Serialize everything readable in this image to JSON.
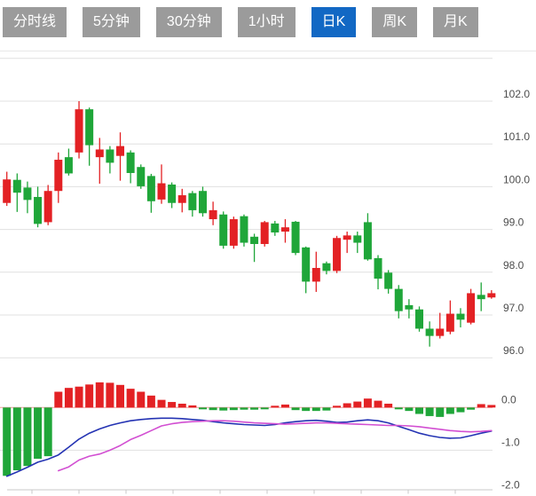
{
  "tabs": {
    "items": [
      {
        "label": "分时线",
        "active": false
      },
      {
        "label": "5分钟",
        "active": false
      },
      {
        "label": "30分钟",
        "active": false
      },
      {
        "label": "1小时",
        "active": false
      },
      {
        "label": "日K",
        "active": true
      },
      {
        "label": "周K",
        "active": false
      },
      {
        "label": "月K",
        "active": false
      }
    ],
    "active_color": "#1268c4",
    "inactive_color": "#9b9b9b"
  },
  "chart_data": {
    "type": "candlestick+macd",
    "grid": true,
    "legend": "none",
    "price_axis": {
      "tick_labels": [
        "102.0",
        "101.0",
        "100.0",
        "99.0",
        "98.0",
        "97.0",
        "96.0"
      ],
      "gridline_values": [
        103,
        102,
        101,
        100,
        99,
        98,
        97,
        96
      ],
      "range": [
        95.6,
        103.2
      ]
    },
    "candles_ohlc": [
      [
        99.62,
        100.35,
        99.55,
        100.17
      ],
      [
        100.16,
        100.31,
        99.41,
        99.86
      ],
      [
        99.98,
        100.12,
        99.38,
        99.69
      ],
      [
        99.76,
        100.0,
        99.05,
        99.13
      ],
      [
        99.17,
        100.04,
        99.1,
        99.9
      ],
      [
        99.9,
        100.8,
        99.62,
        100.63
      ],
      [
        100.69,
        100.89,
        100.26,
        100.31
      ],
      [
        100.8,
        102.0,
        100.66,
        101.81
      ],
      [
        101.81,
        101.85,
        100.49,
        100.97
      ],
      [
        100.69,
        101.14,
        100.07,
        100.87
      ],
      [
        100.87,
        100.95,
        100.31,
        100.56
      ],
      [
        100.72,
        101.27,
        100.14,
        100.95
      ],
      [
        100.8,
        100.85,
        100.08,
        100.32
      ],
      [
        100.46,
        100.52,
        99.95,
        100.01
      ],
      [
        100.25,
        100.3,
        99.39,
        99.66
      ],
      [
        99.7,
        100.52,
        99.6,
        100.08
      ],
      [
        100.05,
        100.1,
        99.5,
        99.62
      ],
      [
        99.62,
        99.95,
        99.4,
        99.8
      ],
      [
        99.85,
        99.9,
        99.3,
        99.45
      ],
      [
        99.9,
        100.0,
        99.3,
        99.38
      ],
      [
        99.24,
        99.65,
        99.1,
        99.45
      ],
      [
        99.35,
        99.42,
        98.55,
        98.62
      ],
      [
        98.62,
        99.3,
        98.55,
        99.24
      ],
      [
        99.31,
        99.35,
        98.6,
        98.69
      ],
      [
        98.83,
        98.9,
        98.24,
        98.66
      ],
      [
        98.66,
        99.2,
        98.6,
        99.17
      ],
      [
        99.14,
        99.2,
        98.85,
        98.93
      ],
      [
        98.95,
        99.24,
        98.69,
        99.05
      ],
      [
        99.18,
        99.2,
        98.4,
        98.45
      ],
      [
        98.58,
        98.6,
        97.51,
        97.78
      ],
      [
        97.78,
        98.48,
        97.54,
        98.1
      ],
      [
        98.21,
        98.25,
        97.95,
        98.03
      ],
      [
        98.03,
        98.85,
        97.98,
        98.8
      ],
      [
        98.76,
        98.95,
        98.45,
        98.86
      ],
      [
        98.86,
        98.95,
        98.45,
        98.69
      ],
      [
        99.17,
        99.38,
        98.27,
        98.3
      ],
      [
        98.33,
        98.4,
        97.6,
        97.85
      ],
      [
        97.99,
        98.05,
        97.5,
        97.61
      ],
      [
        97.61,
        97.7,
        96.92,
        97.09
      ],
      [
        97.23,
        97.37,
        96.92,
        97.13
      ],
      [
        97.13,
        97.2,
        96.61,
        96.68
      ],
      [
        96.68,
        96.85,
        96.26,
        96.51
      ],
      [
        96.51,
        97.05,
        96.45,
        96.68
      ],
      [
        96.61,
        97.34,
        96.55,
        97.03
      ],
      [
        97.03,
        97.16,
        96.71,
        96.89
      ],
      [
        96.82,
        97.61,
        96.78,
        97.51
      ],
      [
        97.47,
        97.76,
        97.09,
        97.37
      ],
      [
        97.41,
        97.58,
        97.38,
        97.51
      ]
    ],
    "macd": {
      "axis_tick_labels": [
        "0.0",
        "-1.0",
        "-2.0"
      ],
      "axis_tick_values": [
        0,
        -1,
        -2
      ],
      "range": [
        -2.0,
        0.65
      ],
      "histogram": [
        -1.6,
        -1.47,
        -1.37,
        -1.2,
        -1.14,
        0.37,
        0.46,
        0.49,
        0.54,
        0.59,
        0.58,
        0.53,
        0.44,
        0.37,
        0.28,
        0.18,
        0.13,
        0.09,
        0.05,
        -0.04,
        -0.06,
        -0.07,
        -0.06,
        -0.05,
        -0.05,
        -0.04,
        0.03,
        0.07,
        -0.06,
        -0.08,
        -0.08,
        -0.07,
        0.04,
        0.1,
        0.14,
        0.21,
        0.16,
        0.09,
        -0.04,
        -0.08,
        -0.15,
        -0.2,
        -0.22,
        -0.15,
        -0.11,
        -0.05,
        0.08,
        0.06
      ],
      "dif": [
        -1.61,
        -1.51,
        -1.4,
        -1.28,
        -1.21,
        -1.11,
        -0.93,
        -0.74,
        -0.6,
        -0.5,
        -0.42,
        -0.36,
        -0.31,
        -0.28,
        -0.26,
        -0.25,
        -0.25,
        -0.26,
        -0.28,
        -0.3,
        -0.33,
        -0.36,
        -0.38,
        -0.4,
        -0.41,
        -0.42,
        -0.4,
        -0.36,
        -0.33,
        -0.31,
        -0.3,
        -0.32,
        -0.35,
        -0.34,
        -0.31,
        -0.29,
        -0.31,
        -0.36,
        -0.44,
        -0.52,
        -0.6,
        -0.66,
        -0.7,
        -0.72,
        -0.71,
        -0.66,
        -0.6,
        -0.55
      ],
      "dea": [
        null,
        null,
        null,
        null,
        null,
        -1.48,
        -1.39,
        -1.23,
        -1.14,
        -1.09,
        -1.0,
        -0.89,
        -0.75,
        -0.65,
        -0.54,
        -0.43,
        -0.38,
        -0.35,
        -0.33,
        -0.32,
        -0.31,
        -0.31,
        -0.32,
        -0.34,
        -0.36,
        -0.37,
        -0.38,
        -0.39,
        -0.38,
        -0.37,
        -0.36,
        -0.36,
        -0.37,
        -0.38,
        -0.39,
        -0.4,
        -0.41,
        -0.42,
        -0.42,
        -0.43,
        -0.45,
        -0.48,
        -0.51,
        -0.54,
        -0.56,
        -0.57,
        -0.56,
        -0.54
      ]
    },
    "colors": {
      "up": "#e32124",
      "down": "#1fa639",
      "dif_line": "#2433b3",
      "dea_line": "#d24fd2",
      "zero_line": "#f09a9a",
      "gridline": "#e0e0e0",
      "axis_line": "#c9c9c9",
      "label_text": "#4d4d4d"
    }
  }
}
